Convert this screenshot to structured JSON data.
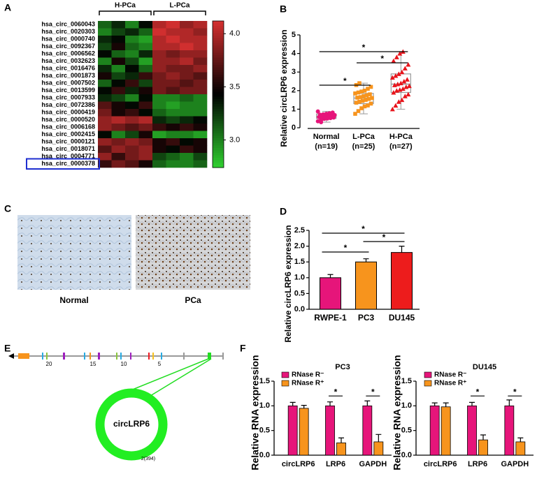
{
  "panel_labels": [
    "A",
    "B",
    "C",
    "D",
    "E",
    "F"
  ],
  "images": {
    "captions": [
      "Normal",
      "PCa"
    ]
  },
  "gene_diagram": {
    "exon_labels": [
      "20",
      "15",
      "10",
      "5"
    ],
    "circle_label": "circLRP6",
    "circle_note": "2(394)"
  },
  "chart_data": [
    {
      "type": "heatmap",
      "rows": [
        "hsa_circ_0060043",
        "hsa_circ_0020303",
        "hsa_circ_0000740",
        "hsa_circ_0092367",
        "hsa_circ_0006562",
        "hsa_circ_0032623",
        "hsa_circ_0016476",
        "hsa_circ_0001873",
        "hsa_circ_0007502",
        "hsa_circ_0013599",
        "hsa_circ_0007933",
        "hsa_circ_0072386",
        "hsa_circ_0000419",
        "hsa_circ_0000520",
        "hsa_circ_0006168",
        "hsa_circ_0002415",
        "hsa_circ_0000121",
        "hsa_circ_0018071",
        "hsa_circ_0004771",
        "hsa_circ_0000378"
      ],
      "groups": [
        "H-PCa",
        "L-PCa"
      ],
      "values": [
        [
          3.1,
          3.3,
          3.0,
          3.4,
          4.0,
          4.1,
          3.9,
          4.0
        ],
        [
          3.0,
          3.2,
          3.3,
          3.1,
          4.1,
          4.0,
          4.0,
          3.9
        ],
        [
          3.3,
          3.4,
          3.0,
          2.9,
          4.0,
          4.1,
          4.0,
          4.0
        ],
        [
          3.2,
          3.5,
          3.1,
          3.0,
          4.0,
          4.0,
          4.1,
          4.0
        ],
        [
          3.4,
          3.1,
          3.0,
          3.3,
          3.9,
          3.8,
          3.9,
          3.9
        ],
        [
          3.0,
          3.5,
          3.2,
          2.9,
          3.9,
          3.9,
          4.0,
          3.8
        ],
        [
          3.3,
          3.0,
          3.4,
          3.1,
          3.9,
          3.8,
          3.8,
          3.9
        ],
        [
          3.5,
          3.2,
          3.3,
          3.6,
          3.8,
          3.9,
          3.8,
          3.7
        ],
        [
          3.1,
          3.4,
          3.6,
          3.2,
          3.8,
          3.8,
          3.7,
          3.8
        ],
        [
          3.4,
          3.6,
          3.3,
          3.5,
          3.8,
          3.7,
          3.8,
          3.8
        ],
        [
          3.3,
          3.2,
          3.0,
          3.4,
          3.0,
          3.0,
          3.1,
          3.0
        ],
        [
          3.7,
          3.5,
          3.4,
          3.6,
          3.0,
          2.9,
          3.0,
          3.0
        ],
        [
          3.8,
          3.5,
          3.6,
          3.4,
          3.1,
          3.0,
          3.0,
          3.0
        ],
        [
          3.9,
          4.0,
          3.9,
          4.0,
          3.3,
          3.2,
          3.3,
          3.4
        ],
        [
          3.9,
          3.8,
          3.7,
          3.8,
          3.6,
          3.5,
          3.6,
          3.5
        ],
        [
          3.4,
          3.0,
          3.2,
          3.5,
          2.9,
          3.0,
          3.0,
          2.9
        ],
        [
          3.9,
          3.8,
          3.9,
          3.8,
          3.5,
          3.6,
          3.4,
          3.5
        ],
        [
          3.7,
          3.9,
          3.8,
          3.9,
          3.5,
          3.4,
          3.6,
          3.5
        ],
        [
          3.9,
          3.6,
          3.8,
          3.9,
          3.2,
          3.1,
          3.0,
          3.2
        ],
        [
          3.6,
          3.8,
          3.7,
          3.5,
          3.1,
          3.0,
          3.0,
          3.1
        ]
      ],
      "clim": [
        2.74,
        4.12
      ],
      "colors": [
        "#2fd02f",
        "#000000",
        "#d63030"
      ],
      "colorbar_ticks": [
        {
          "value": 4,
          "label": "4.0"
        },
        3.5,
        {
          "value": 3,
          "label": "3.0"
        }
      ]
    },
    {
      "type": "box",
      "y_label": "Relative circLRP6 expression",
      "categories": [
        "Normal",
        "L-PCa",
        "H-PCa"
      ],
      "category_notes": [
        "(n=19)",
        "(n=25)",
        "(n=27)"
      ],
      "ylim": [
        0,
        5
      ],
      "yticks": [
        0,
        1,
        2,
        3,
        4,
        5
      ],
      "series": [
        {
          "name": "Normal",
          "color": "#e6157a",
          "marker": "circle",
          "values": [
            0.35,
            0.42,
            0.48,
            0.5,
            0.52,
            0.55,
            0.58,
            0.6,
            0.62,
            0.64,
            0.66,
            0.68,
            0.7,
            0.72,
            0.75,
            0.78,
            0.82,
            0.88,
            0.3
          ],
          "box": {
            "whisker_low": 0.3,
            "q1": 0.5,
            "median": 0.62,
            "q3": 0.74,
            "whisker_high": 0.88
          }
        },
        {
          "name": "L-PCa",
          "color": "#f7941d",
          "marker": "square",
          "values": [
            0.75,
            0.9,
            1.05,
            1.15,
            1.2,
            1.3,
            1.35,
            1.4,
            1.45,
            1.5,
            1.55,
            1.6,
            1.62,
            1.65,
            1.7,
            1.75,
            1.8,
            1.85,
            1.9,
            1.95,
            2.0,
            2.1,
            2.2,
            2.3,
            2.4
          ],
          "box": {
            "whisker_low": 0.75,
            "q1": 1.3,
            "median": 1.6,
            "q3": 1.85,
            "whisker_high": 2.4
          }
        },
        {
          "name": "H-PCa",
          "color": "#e8141b",
          "marker": "triangle",
          "values": [
            1.0,
            1.2,
            1.4,
            1.5,
            1.7,
            1.8,
            1.9,
            2.0,
            2.05,
            2.1,
            2.2,
            2.25,
            2.3,
            2.35,
            2.4,
            2.5,
            2.6,
            2.7,
            2.8,
            2.9,
            3.0,
            3.2,
            3.4,
            3.6,
            3.8,
            4.0,
            4.1
          ],
          "box": {
            "whisker_low": 1.0,
            "q1": 1.9,
            "median": 2.35,
            "q3": 2.9,
            "whisker_high": 4.1
          }
        }
      ],
      "significance": [
        "*",
        "*",
        "*"
      ]
    },
    {
      "type": "bar",
      "y_label": "Relative circLRP6 expression",
      "categories": [
        "RWPE-1",
        "PC3",
        "DU145"
      ],
      "values": [
        1.0,
        1.5,
        1.8
      ],
      "errors": [
        0.1,
        0.1,
        0.2
      ],
      "colors": [
        "#e6157a",
        "#f7941d",
        "#ed1c1c"
      ],
      "ylim": [
        0,
        2.5
      ],
      "yticks": [
        {
          "value": 0,
          "label": "0.0"
        },
        0.5,
        {
          "value": 1,
          "label": "1.0"
        },
        1.5,
        {
          "value": 2,
          "label": "2.0"
        },
        2.5
      ],
      "significance": [
        "*",
        "*",
        "*"
      ]
    },
    {
      "type": "grouped_bar",
      "title": "PC3",
      "y_label": "Relative RNA expression",
      "categories": [
        "circLRP6",
        "LRP6",
        "GAPDH"
      ],
      "series": [
        {
          "name": "RNase R⁻",
          "color": "#e6157a",
          "values": [
            1.0,
            1.0,
            1.0
          ],
          "errors": [
            0.07,
            0.08,
            0.1
          ]
        },
        {
          "name": "RNase R⁺",
          "color": "#f7941d",
          "values": [
            0.95,
            0.25,
            0.27
          ],
          "errors": [
            0.06,
            0.1,
            0.15
          ]
        }
      ],
      "ylim": [
        0,
        1.5
      ],
      "yticks": [
        {
          "value": 0,
          "label": "0.0"
        },
        0.5,
        {
          "value": 1,
          "label": "1.0"
        },
        1.5
      ],
      "significance": [
        "*",
        "*"
      ]
    },
    {
      "type": "grouped_bar",
      "title": "DU145",
      "y_label": "Relative RNA expression",
      "categories": [
        "circLRP6",
        "LRP6",
        "GAPDH"
      ],
      "series": [
        {
          "name": "RNase R⁻",
          "color": "#e6157a",
          "values": [
            1.0,
            1.0,
            1.0
          ],
          "errors": [
            0.06,
            0.07,
            0.12
          ]
        },
        {
          "name": "RNase R⁺",
          "color": "#f7941d",
          "values": [
            0.98,
            0.31,
            0.27
          ],
          "errors": [
            0.08,
            0.1,
            0.08
          ]
        }
      ],
      "ylim": [
        0,
        1.5
      ],
      "yticks": [
        {
          "value": 0,
          "label": "0.0"
        },
        0.5,
        {
          "value": 1,
          "label": "1.0"
        },
        1.5
      ],
      "significance": [
        "*",
        "*"
      ]
    }
  ]
}
